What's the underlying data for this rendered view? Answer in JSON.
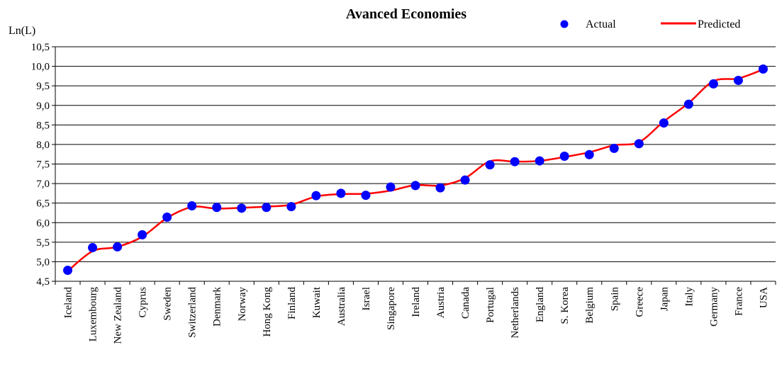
{
  "chart_data": {
    "type": "line",
    "title": "Avanced Economies",
    "ylabel": "Ln(L)",
    "xlabel": "",
    "ylim": [
      4.5,
      10.5
    ],
    "yticks": [
      "4,5",
      "5,0",
      "5,5",
      "6,0",
      "6,5",
      "7,0",
      "7,5",
      "8,0",
      "8,5",
      "9,0",
      "9,5",
      "10,0",
      "10,5"
    ],
    "grid": true,
    "legend_position": "top-right",
    "categories": [
      "Iceland",
      "Luxembourg",
      "New Zealand",
      "Cyprus",
      "Sweden",
      "Switzerland",
      "Denmark",
      "Norway",
      "Hong Kong",
      "Finland",
      "Kuwait",
      "Australia",
      "Israel",
      "Singapore",
      "Ireland",
      "Austria",
      "Canada",
      "Portugal",
      "Netherlands",
      "England",
      "S. Korea",
      "Belgium",
      "Spain",
      "Greece",
      "Japan",
      "Italy",
      "Germany",
      "France",
      "USA"
    ],
    "series": [
      {
        "name": "Actual",
        "style": "markers",
        "color": "#0000ff",
        "values": [
          4.78,
          5.36,
          5.38,
          5.69,
          6.14,
          6.43,
          6.39,
          6.37,
          6.39,
          6.41,
          6.69,
          6.75,
          6.7,
          6.91,
          6.95,
          6.89,
          7.09,
          7.48,
          7.56,
          7.58,
          7.7,
          7.74,
          7.9,
          8.02,
          8.55,
          9.03,
          9.55,
          9.64,
          9.93
        ]
      },
      {
        "name": "Predicted",
        "style": "line",
        "color": "#ff0000",
        "values": [
          4.76,
          5.27,
          5.38,
          5.64,
          6.12,
          6.4,
          6.36,
          6.38,
          6.41,
          6.46,
          6.67,
          6.73,
          6.74,
          6.82,
          6.96,
          6.95,
          7.14,
          7.57,
          7.56,
          7.58,
          7.68,
          7.8,
          7.98,
          8.06,
          8.59,
          9.06,
          9.62,
          9.69,
          9.92
        ]
      }
    ]
  }
}
